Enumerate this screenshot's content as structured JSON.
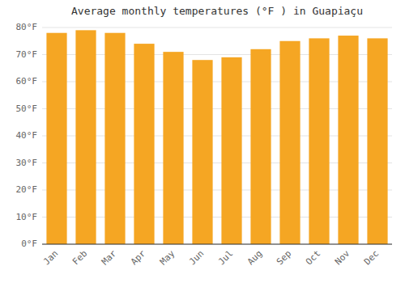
{
  "chart_data": {
    "type": "bar",
    "title": "Average monthly temperatures (°F ) in Guapiaçu",
    "categories": [
      "Jan",
      "Feb",
      "Mar",
      "Apr",
      "May",
      "Jun",
      "Jul",
      "Aug",
      "Sep",
      "Oct",
      "Nov",
      "Dec"
    ],
    "values": [
      78,
      79,
      78,
      74,
      71,
      68,
      69,
      72,
      75,
      76,
      77,
      76
    ],
    "color": "#F5A623",
    "ylim": [
      0,
      80
    ],
    "yticks": [
      {
        "value": 0,
        "label": "0°F"
      },
      {
        "value": 10,
        "label": "10°F"
      },
      {
        "value": 20,
        "label": "20°F"
      },
      {
        "value": 30,
        "label": "30°F"
      },
      {
        "value": 40,
        "label": "40°F"
      },
      {
        "value": 50,
        "label": "50°F"
      },
      {
        "value": 60,
        "label": "60°F"
      },
      {
        "value": 70,
        "label": "70°F"
      },
      {
        "value": 80,
        "label": "80°F"
      }
    ],
    "grid": true
  }
}
